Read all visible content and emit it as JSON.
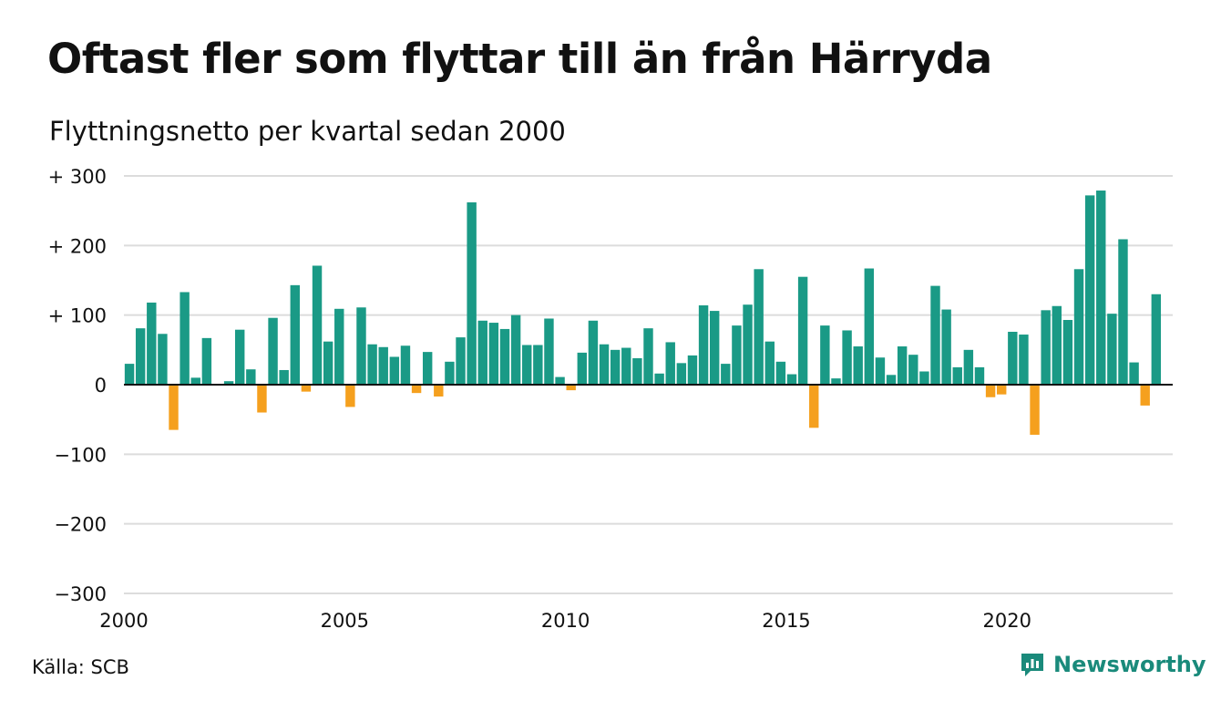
{
  "title": "Oftast fler som flyttar till än från Härryda",
  "subtitle": "Flyttningsnetto per kvartal sedan 2000",
  "source": "Källa: SCB",
  "brand": "Newsworthy",
  "colors": {
    "positive": "#1a9a86",
    "negative": "#f5a01e",
    "grid": "#dcdcdc",
    "axis": "#111111",
    "brand": "#1a8a7b"
  },
  "chart_data": {
    "type": "bar",
    "x_start": 2000,
    "x_step": 0.25,
    "xticks": [
      2000,
      2005,
      2010,
      2015,
      2020
    ],
    "xtick_labels": [
      "2000",
      "2005",
      "2010",
      "2015",
      "2020"
    ],
    "yticks": [
      300,
      200,
      100,
      0,
      -100,
      -200,
      -300
    ],
    "ytick_labels": [
      "+ 300",
      "+ 200",
      "+ 100",
      "0",
      "−100",
      "−200",
      "−300"
    ],
    "ylim": [
      -300,
      300
    ],
    "xlim": [
      2000,
      2023.75
    ],
    "values": [
      30,
      81,
      118,
      73,
      -65,
      133,
      10,
      67,
      0,
      5,
      79,
      22,
      -40,
      96,
      21,
      143,
      -10,
      171,
      62,
      109,
      -32,
      111,
      58,
      54,
      40,
      56,
      -12,
      47,
      -17,
      33,
      68,
      262,
      92,
      89,
      80,
      100,
      57,
      57,
      95,
      11,
      -8,
      46,
      92,
      58,
      50,
      53,
      38,
      81,
      16,
      61,
      31,
      42,
      114,
      106,
      30,
      85,
      115,
      166,
      62,
      33,
      15,
      155,
      -62,
      85,
      9,
      78,
      55,
      167,
      39,
      14,
      55,
      43,
      19,
      142,
      108,
      25,
      50,
      25,
      -18,
      -14,
      76,
      72,
      -72,
      107,
      113,
      93,
      166,
      272,
      279,
      102,
      209,
      32,
      -30,
      130
    ]
  }
}
